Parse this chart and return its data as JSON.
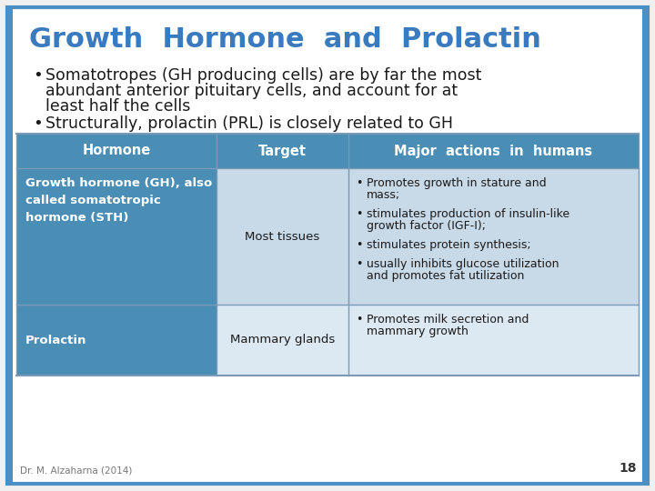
{
  "title": "Growth  Hormone  and  Prolactin",
  "title_color": "#3a7abf",
  "bg_color": "#f0f0f0",
  "slide_bg": "#ffffff",
  "border_color": "#4a90c4",
  "bullet1_line1": "Somatotropes (GH producing cells) are by far the most",
  "bullet1_line2": "abundant anterior pituitary cells, and account for at",
  "bullet1_line3": "least half the cells",
  "bullet2": "Structurally, prolactin (PRL) is closely related to GH",
  "table_header_bg": "#4a8db5",
  "table_header_text": "#ffffff",
  "table_row1_col1_bg": "#4a8db5",
  "table_row1_rest_bg": "#c8d9e8",
  "table_row2_col1_bg": "#4a8db5",
  "table_row2_rest_bg": "#dce8f2",
  "col_headers": [
    "Hormone",
    "Target",
    "Major  actions  in  humans"
  ],
  "row1_col1": "Growth hormone (GH), also\ncalled somatotropic\nhormone (STH)",
  "row1_col2": "Most tissues",
  "row1_col3_bullets": [
    "Promotes growth in stature and\nmass;",
    "stimulates production of insulin-like\ngrowth factor (IGF-I);",
    "stimulates protein synthesis;",
    "usually inhibits glucose utilization\nand promotes fat utilization"
  ],
  "row2_col1": "Prolactin",
  "row2_col2": "Mammary glands",
  "row2_col3_bullets": [
    "Promotes milk secretion and\nmammary growth"
  ],
  "footer": "Dr. M. Alzaharna (2014)",
  "page_num": "18",
  "text_color": "#1a1a1a",
  "line_color": "#7a9ab5"
}
